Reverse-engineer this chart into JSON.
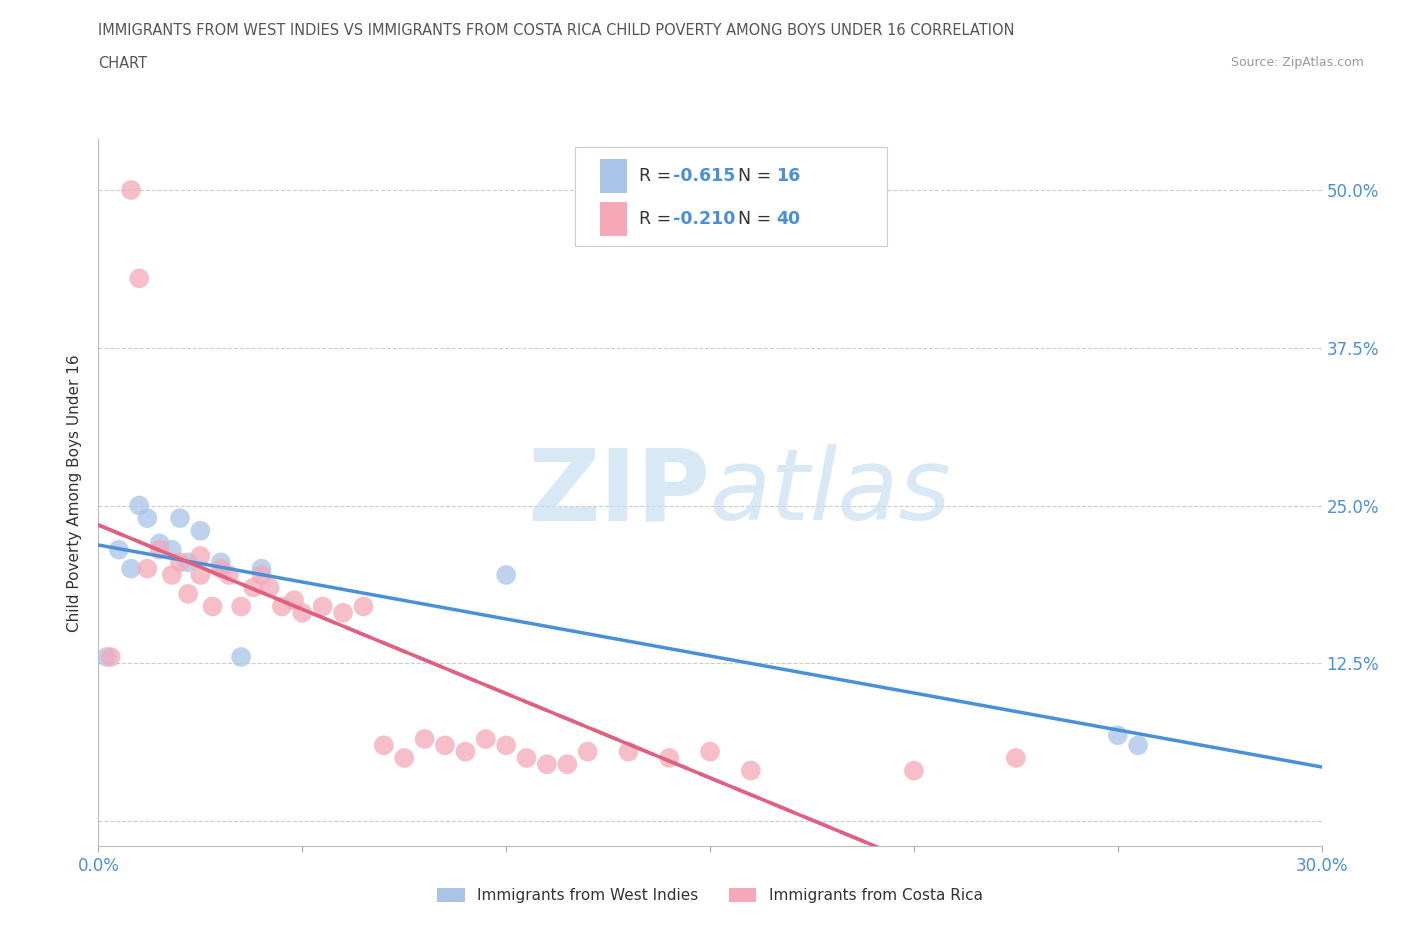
{
  "title_line1": "IMMIGRANTS FROM WEST INDIES VS IMMIGRANTS FROM COSTA RICA CHILD POVERTY AMONG BOYS UNDER 16 CORRELATION",
  "title_line2": "CHART",
  "source": "Source: ZipAtlas.com",
  "ylabel": "Child Poverty Among Boys Under 16",
  "xlim": [
    0.0,
    0.3
  ],
  "ylim": [
    -0.02,
    0.54
  ],
  "xticks": [
    0.0,
    0.05,
    0.1,
    0.15,
    0.2,
    0.25,
    0.3
  ],
  "xticklabels": [
    "0.0%",
    "",
    "",
    "",
    "",
    "",
    "30.0%"
  ],
  "yticks": [
    0.0,
    0.125,
    0.25,
    0.375,
    0.5
  ],
  "yticklabels": [
    "",
    "12.5%",
    "25.0%",
    "37.5%",
    "50.0%"
  ],
  "grid_color": "#cccccc",
  "background_color": "#ffffff",
  "west_indies_color": "#aac4e8",
  "costa_rica_color": "#f4a8b8",
  "west_indies_line_color": "#4a90d9",
  "costa_rica_line_color": "#e06080",
  "west_indies_R": -0.615,
  "west_indies_N": 16,
  "costa_rica_R": -0.21,
  "costa_rica_N": 40,
  "west_indies_x": [
    0.002,
    0.005,
    0.008,
    0.01,
    0.012,
    0.015,
    0.018,
    0.02,
    0.022,
    0.025,
    0.03,
    0.035,
    0.04,
    0.1,
    0.25,
    0.255
  ],
  "west_indies_y": [
    0.13,
    0.215,
    0.2,
    0.25,
    0.24,
    0.22,
    0.215,
    0.24,
    0.205,
    0.23,
    0.205,
    0.13,
    0.2,
    0.195,
    0.068,
    0.06
  ],
  "costa_rica_x": [
    0.003,
    0.008,
    0.01,
    0.012,
    0.015,
    0.018,
    0.02,
    0.022,
    0.025,
    0.025,
    0.028,
    0.03,
    0.032,
    0.035,
    0.038,
    0.04,
    0.042,
    0.045,
    0.048,
    0.05,
    0.055,
    0.06,
    0.065,
    0.07,
    0.075,
    0.08,
    0.085,
    0.09,
    0.095,
    0.1,
    0.105,
    0.11,
    0.115,
    0.12,
    0.13,
    0.14,
    0.15,
    0.16,
    0.2,
    0.225
  ],
  "costa_rica_y": [
    0.13,
    0.5,
    0.43,
    0.2,
    0.215,
    0.195,
    0.205,
    0.18,
    0.195,
    0.21,
    0.17,
    0.2,
    0.195,
    0.17,
    0.185,
    0.195,
    0.185,
    0.17,
    0.175,
    0.165,
    0.17,
    0.165,
    0.17,
    0.06,
    0.05,
    0.065,
    0.06,
    0.055,
    0.065,
    0.06,
    0.05,
    0.045,
    0.045,
    0.055,
    0.055,
    0.05,
    0.055,
    0.04,
    0.04,
    0.05
  ],
  "wi_line_x": [
    0.0,
    0.3
  ],
  "cr_line_x": [
    0.0,
    0.225
  ],
  "watermark_zip": "ZIP",
  "watermark_atlas": "atlas",
  "legend_label_wi": "Immigrants from West Indies",
  "legend_label_cr": "Immigrants from Costa Rica",
  "label_color": "#4a90d9",
  "text_color": "#555555"
}
